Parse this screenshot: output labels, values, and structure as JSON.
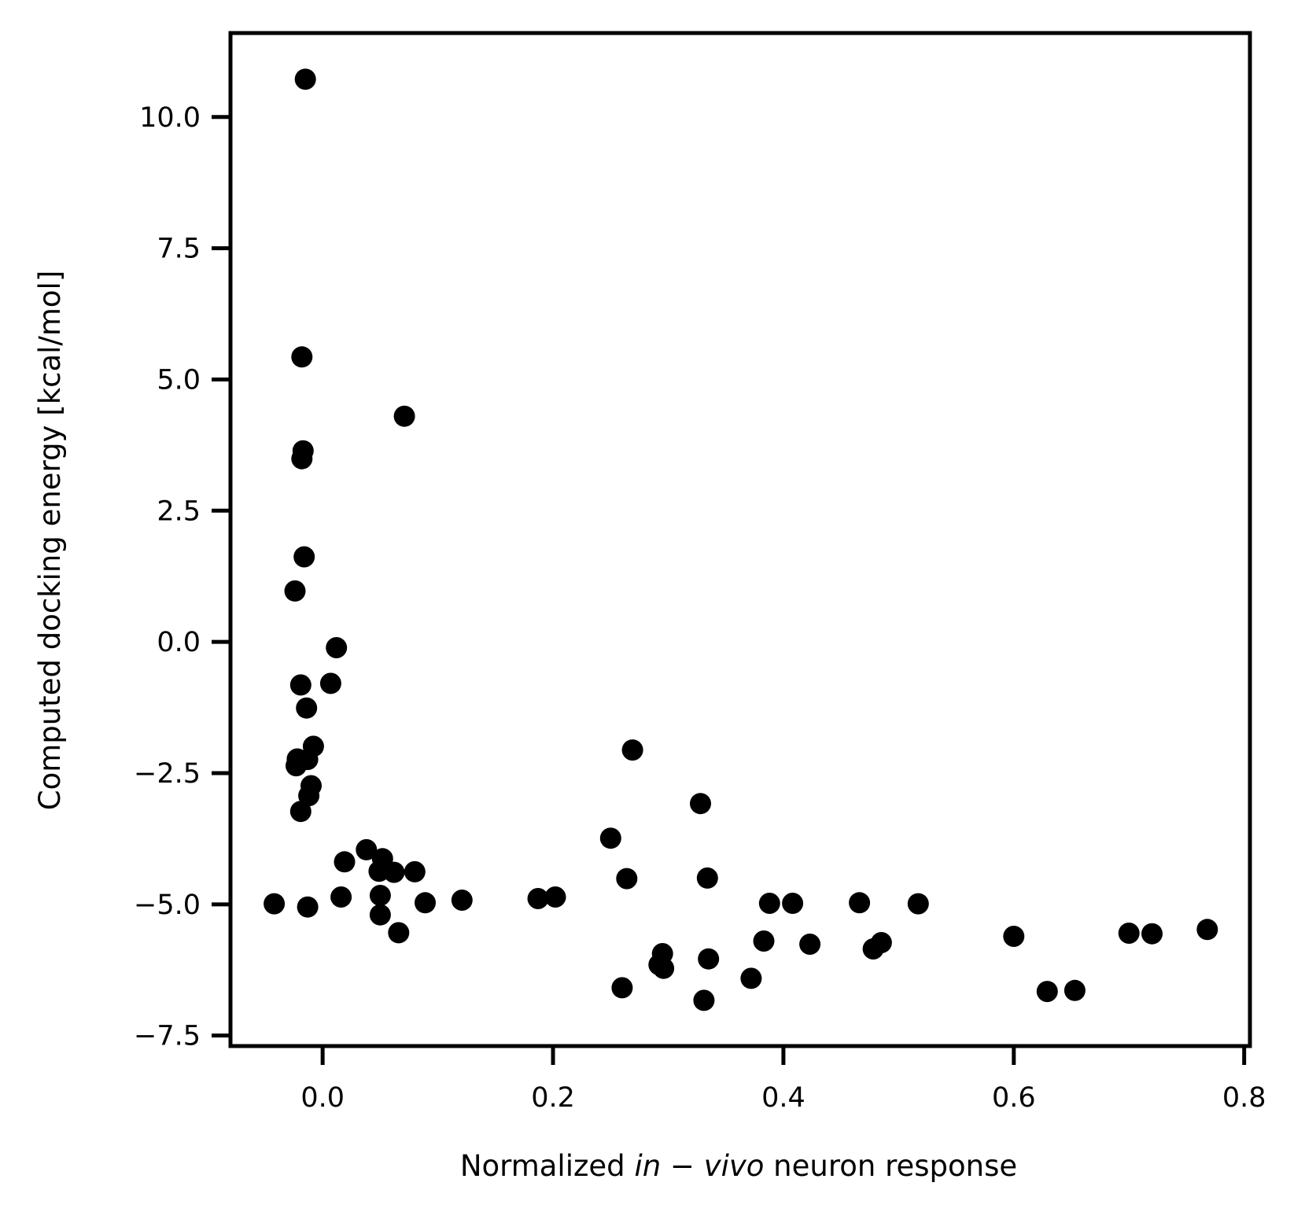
{
  "chart_data": {
    "type": "scatter",
    "xlabel": {
      "prefix": "Normalized ",
      "italic_a": "in",
      "operator": " − ",
      "italic_b": "vivo",
      "suffix": " neuron response"
    },
    "ylabel": "Computed docking energy [kcal/mol]",
    "xlim": [
      -0.08,
      0.805
    ],
    "ylim": [
      -7.7,
      11.6
    ],
    "xticks": [
      0.0,
      0.2,
      0.4,
      0.6,
      0.8
    ],
    "xtick_labels": [
      "0.0",
      "0.2",
      "0.4",
      "0.6",
      "0.8"
    ],
    "yticks": [
      -7.5,
      -5.0,
      -2.5,
      0.0,
      2.5,
      5.0,
      7.5,
      10.0
    ],
    "ytick_labels": [
      "−7.5",
      "−5.0",
      "−2.5",
      "0.0",
      "2.5",
      "5.0",
      "7.5",
      "10.0"
    ],
    "grid": false,
    "marker_color": "#000000",
    "points": [
      [
        -0.015,
        10.72
      ],
      [
        -0.018,
        5.43
      ],
      [
        -0.017,
        3.64
      ],
      [
        -0.018,
        3.49
      ],
      [
        -0.016,
        1.62
      ],
      [
        -0.024,
        0.97
      ],
      [
        0.012,
        -0.11
      ],
      [
        -0.019,
        -0.82
      ],
      [
        0.007,
        -0.79
      ],
      [
        -0.014,
        -1.26
      ],
      [
        -0.008,
        -1.99
      ],
      [
        -0.022,
        -2.23
      ],
      [
        -0.013,
        -2.24
      ],
      [
        -0.023,
        -2.36
      ],
      [
        -0.01,
        -2.74
      ],
      [
        -0.012,
        -2.93
      ],
      [
        -0.019,
        -3.23
      ],
      [
        -0.042,
        -4.99
      ],
      [
        -0.013,
        -5.05
      ],
      [
        0.016,
        -4.86
      ],
      [
        0.019,
        -4.19
      ],
      [
        0.038,
        -3.96
      ],
      [
        0.052,
        -4.13
      ],
      [
        0.049,
        -4.37
      ],
      [
        0.062,
        -4.39
      ],
      [
        0.08,
        -4.38
      ],
      [
        0.05,
        -4.83
      ],
      [
        0.05,
        -5.2
      ],
      [
        0.066,
        -5.54
      ],
      [
        0.071,
        4.3
      ],
      [
        0.089,
        -4.97
      ],
      [
        0.121,
        -4.92
      ],
      [
        0.187,
        -4.89
      ],
      [
        0.202,
        -4.86
      ],
      [
        0.25,
        -3.74
      ],
      [
        0.26,
        -6.59
      ],
      [
        0.264,
        -4.51
      ],
      [
        0.269,
        -2.06
      ],
      [
        0.292,
        -6.15
      ],
      [
        0.295,
        -5.94
      ],
      [
        0.296,
        -6.22
      ],
      [
        0.328,
        -3.08
      ],
      [
        0.331,
        -6.83
      ],
      [
        0.334,
        -4.5
      ],
      [
        0.335,
        -6.04
      ],
      [
        0.372,
        -6.41
      ],
      [
        0.383,
        -5.7
      ],
      [
        0.388,
        -4.98
      ],
      [
        0.408,
        -4.98
      ],
      [
        0.423,
        -5.76
      ],
      [
        0.466,
        -4.97
      ],
      [
        0.478,
        -5.85
      ],
      [
        0.485,
        -5.73
      ],
      [
        0.517,
        -4.99
      ],
      [
        0.6,
        -5.61
      ],
      [
        0.629,
        -6.66
      ],
      [
        0.653,
        -6.64
      ],
      [
        0.7,
        -5.55
      ],
      [
        0.72,
        -5.56
      ],
      [
        0.768,
        -5.48
      ]
    ]
  }
}
